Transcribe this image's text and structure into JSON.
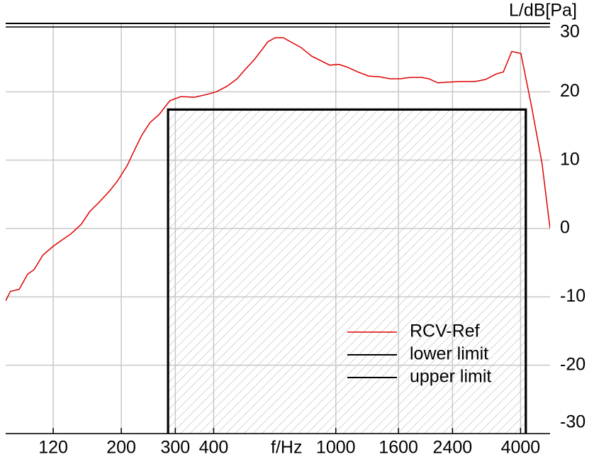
{
  "chart_data": {
    "type": "line",
    "y_axis_label": "L/dB[Pa]",
    "x_axis_label": "f/Hz",
    "log_x": true,
    "grid": true,
    "xlim": [
      84,
      4990
    ],
    "ylim": [
      -30,
      30
    ],
    "xticks": [
      120,
      200,
      300,
      400,
      1000,
      1600,
      2400,
      4000
    ],
    "yticks": [
      -30,
      -20,
      -10,
      0,
      10,
      20,
      30
    ],
    "legend": "lower right",
    "series": [
      {
        "name": "RCV-Ref",
        "color": "#e00000",
        "x": [
          84,
          87,
          93,
          99,
          104,
          111,
          120,
          130,
          137,
          148,
          158,
          169,
          184,
          194,
          209,
          221,
          233,
          248,
          266,
          288,
          313,
          347,
          379,
          408,
          442,
          477,
          505,
          540,
          576,
          600,
          634,
          675,
          713,
          769,
          835,
          880,
          955,
          1025,
          1090,
          1180,
          1280,
          1385,
          1500,
          1625,
          1745,
          1905,
          2010,
          2150,
          2320,
          2555,
          2840,
          3075,
          3330,
          3515,
          3745,
          4010,
          4350,
          4700,
          4990
        ],
        "values": [
          -10.6,
          -9.2,
          -8.9,
          -6.7,
          -6.0,
          -3.9,
          -2.6,
          -1.5,
          -0.8,
          0.6,
          2.5,
          3.8,
          5.6,
          6.9,
          9.2,
          11.5,
          13.6,
          15.5,
          16.7,
          18.7,
          19.3,
          19.2,
          19.6,
          20.0,
          20.8,
          21.9,
          23.2,
          24.6,
          26.2,
          27.3,
          27.9,
          27.9,
          27.3,
          26.5,
          25.2,
          24.7,
          23.9,
          24.0,
          23.6,
          22.9,
          22.3,
          22.2,
          21.9,
          21.9,
          22.1,
          22.1,
          21.9,
          21.3,
          21.4,
          21.5,
          21.5,
          21.8,
          22.6,
          22.9,
          25.9,
          25.6,
          17.7,
          9.5,
          0
        ]
      },
      {
        "name": "lower limit",
        "color": "#000000",
        "x": [
          284,
          284,
          4160,
          4160
        ],
        "values": [
          -30,
          17.4,
          17.4,
          -30
        ]
      },
      {
        "name": "upper limit",
        "color": "#000000",
        "x": [
          284,
          284,
          4160,
          4160
        ],
        "values": [
          -30,
          17.4,
          17.4,
          -30
        ]
      }
    ]
  }
}
